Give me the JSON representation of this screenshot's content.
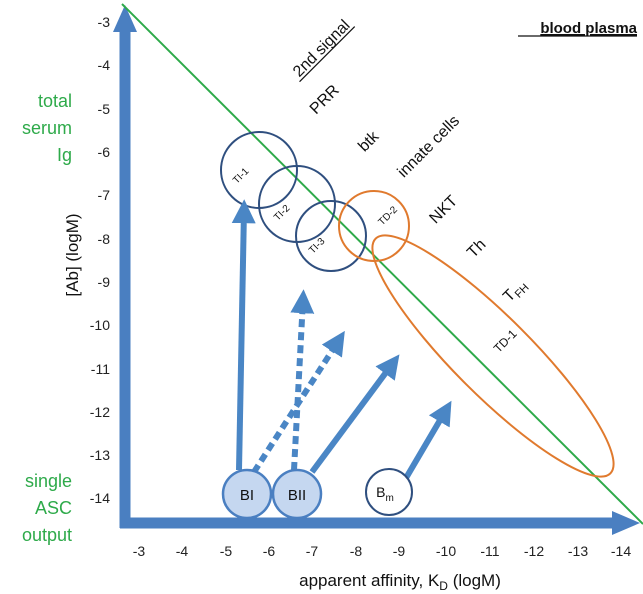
{
  "title": "blood plasma",
  "x_axis": {
    "label_main": "apparent affinity, K",
    "label_sub": "D",
    "label_unit": " (logM)",
    "ticks": [
      "-3",
      "-4",
      "-5",
      "-6",
      "-7",
      "-8",
      "-9",
      "-10",
      "-11",
      "-12",
      "-13",
      "-14"
    ]
  },
  "y_axis": {
    "label": "[Ab] (logM)",
    "ticks": [
      "-3",
      "-4",
      "-5",
      "-6",
      "-7",
      "-8",
      "-9",
      "-10",
      "-11",
      "-12",
      "-13",
      "-14"
    ]
  },
  "left_labels": {
    "top": [
      "total",
      "serum",
      "Ig"
    ],
    "bottom": [
      "single",
      "ASC",
      "output"
    ]
  },
  "signal_labels": {
    "heading": "2nd signal",
    "items": [
      "PRR",
      "btk",
      "innate cells",
      "NKT",
      "Th"
    ],
    "tfh_main": "T",
    "tfh_sub": "FH"
  },
  "regions": [
    {
      "label": "TI-1",
      "color": "#2f4f7f"
    },
    {
      "label": "TI-2",
      "color": "#2f4f7f"
    },
    {
      "label": "TI-3",
      "color": "#2f4f7f"
    },
    {
      "label": "TD-2",
      "color": "#e07a2e"
    },
    {
      "label": "TD-1",
      "color": "#e07a2e"
    }
  ],
  "cells": [
    {
      "label": "BI"
    },
    {
      "label": "BII"
    },
    {
      "label_main": "B",
      "label_sub": "m"
    }
  ],
  "colors": {
    "axis": "#4a7fc1",
    "arrow": "#4a86c5",
    "diagonal": "#2eaa4a",
    "cell_fill": "#c5d7f0",
    "cell_stroke": "#4a7fc1"
  }
}
